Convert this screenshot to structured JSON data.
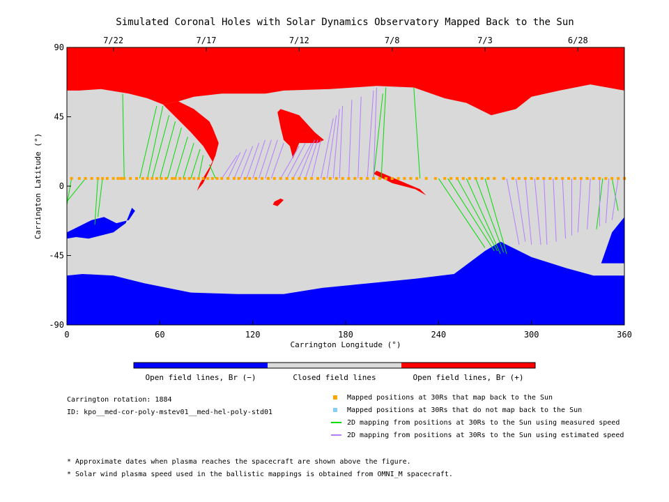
{
  "chart_data": {
    "type": "map",
    "title": "Simulated Coronal Holes with Solar Dynamics Observatory Mapped Back to the Sun",
    "xlabel": "Carrington Longitude (°)",
    "ylabel": "Carrington Latitude (°)",
    "xlim": [
      0,
      360
    ],
    "ylim": [
      -90,
      90
    ],
    "x_ticks": [
      0,
      60,
      120,
      180,
      240,
      300,
      360
    ],
    "y_ticks": [
      90,
      45,
      0,
      -45,
      -90
    ],
    "date_ticks": [
      {
        "label": "7/22",
        "lon": 30
      },
      {
        "label": "7/17",
        "lon": 90
      },
      {
        "label": "7/12",
        "lon": 150
      },
      {
        "label": "7/8",
        "lon": 210
      },
      {
        "label": "7/3",
        "lon": 270
      },
      {
        "label": "6/28",
        "lon": 330
      }
    ],
    "colors": {
      "closed": "#d9d9d9",
      "open_positive": "#ff0000",
      "open_negative": "#0000ff",
      "mapped_point": "#ffa500",
      "unmapped_point": "#87cefa",
      "measured_speed": "#00dd00",
      "estimated_speed": "#b57cff"
    },
    "colorbar": {
      "labels": [
        "Open field lines, Br (−)",
        "Closed field lines",
        "Open field lines, Br (+)"
      ],
      "colors": [
        "#0000ff",
        "#d9d9d9",
        "#ff0000"
      ]
    },
    "legend": [
      {
        "label": "Mapped positions at 30Rs that map back to the Sun",
        "kind": "square",
        "color": "#ffa500"
      },
      {
        "label": "Mapped positions at 30Rs that do not map back to the Sun",
        "kind": "square",
        "color": "#87cefa"
      },
      {
        "label": "2D mapping from positions at 30Rs to the Sun using measured speed",
        "kind": "line",
        "color": "#00dd00"
      },
      {
        "label": "2D mapping from positions at 30Rs to the Sun using estimated speed",
        "kind": "line",
        "color": "#b57cff"
      }
    ],
    "info": {
      "carrington_rotation": "Carrington rotation: 1884",
      "id": "ID: kpo__med-cor-poly-mstev01__med-hel-poly-std01"
    },
    "footnotes": [
      "* Approximate dates when plasma reaches the spacecraft are shown above the figure.",
      "* Solar wind plasma speed used in the ballistic mappings is obtained from OMNI_M spacecraft."
    ],
    "regions": {
      "north_polar_positive": [
        [
          0,
          90
        ],
        [
          360,
          90
        ],
        [
          360,
          62
        ],
        [
          338,
          66
        ],
        [
          318,
          62
        ],
        [
          300,
          58
        ],
        [
          290,
          50
        ],
        [
          274,
          46
        ],
        [
          258,
          54
        ],
        [
          244,
          57
        ],
        [
          224,
          64
        ],
        [
          200,
          65
        ],
        [
          170,
          63
        ],
        [
          140,
          62
        ],
        [
          128,
          60
        ],
        [
          100,
          60
        ],
        [
          82,
          58
        ],
        [
          72,
          55
        ],
        [
          62,
          53
        ],
        [
          52,
          57
        ],
        [
          40,
          60
        ],
        [
          22,
          63
        ],
        [
          8,
          62
        ],
        [
          0,
          62
        ]
      ],
      "north_positive_tongue": [
        [
          72,
          55
        ],
        [
          62,
          53
        ],
        [
          80,
          35
        ],
        [
          88,
          26
        ],
        [
          94,
          16
        ],
        [
          92,
          12
        ],
        [
          86,
          2
        ],
        [
          84,
          -3
        ],
        [
          88,
          2
        ],
        [
          92,
          10
        ],
        [
          96,
          20
        ],
        [
          98,
          28
        ],
        [
          94,
          38
        ],
        [
          92,
          42
        ],
        [
          82,
          50
        ]
      ],
      "north_positive_patch_a": [
        [
          138,
          50
        ],
        [
          150,
          46
        ],
        [
          160,
          35
        ],
        [
          166,
          30
        ],
        [
          162,
          28
        ],
        [
          150,
          28
        ],
        [
          146,
          18
        ],
        [
          144,
          26
        ],
        [
          140,
          30
        ],
        [
          138,
          38
        ],
        [
          136,
          48
        ]
      ],
      "south_polar_negative": [
        [
          0,
          -90
        ],
        [
          360,
          -90
        ],
        [
          360,
          -58
        ],
        [
          340,
          -58
        ],
        [
          322,
          -53
        ],
        [
          300,
          -46
        ],
        [
          280,
          -36
        ],
        [
          270,
          -42
        ],
        [
          250,
          -57
        ],
        [
          225,
          -60
        ],
        [
          205,
          -62
        ],
        [
          185,
          -64
        ],
        [
          165,
          -66
        ],
        [
          140,
          -70
        ],
        [
          110,
          -70
        ],
        [
          80,
          -69
        ],
        [
          50,
          -63
        ],
        [
          30,
          -58
        ],
        [
          10,
          -57
        ],
        [
          0,
          -58
        ]
      ],
      "south_negative_patch_west": [
        [
          0,
          -30
        ],
        [
          8,
          -26
        ],
        [
          16,
          -22
        ],
        [
          24,
          -20
        ],
        [
          32,
          -24
        ],
        [
          40,
          -22
        ],
        [
          44,
          -16
        ],
        [
          42,
          -14
        ],
        [
          38,
          -24
        ],
        [
          30,
          -30
        ],
        [
          22,
          -32
        ],
        [
          14,
          -34
        ],
        [
          6,
          -33
        ],
        [
          0,
          -34
        ]
      ],
      "south_negative_patch_east": [
        [
          345,
          -50
        ],
        [
          352,
          -30
        ],
        [
          360,
          -20
        ],
        [
          360,
          -50
        ]
      ],
      "positive_streak_equator": [
        [
          198,
          8
        ],
        [
          210,
          2
        ],
        [
          225,
          -2
        ],
        [
          232,
          -6
        ],
        [
          228,
          -2
        ],
        [
          214,
          4
        ],
        [
          200,
          10
        ]
      ],
      "positive_speck": [
        [
          134,
          -10
        ],
        [
          138,
          -8
        ],
        [
          140,
          -9
        ],
        [
          136,
          -13
        ],
        [
          133,
          -12
        ]
      ]
    },
    "mapped_points_30Rs": {
      "lat": 5,
      "lon": [
        3,
        8,
        12,
        16,
        20,
        23,
        26,
        30,
        33,
        35,
        37,
        41,
        45,
        49,
        52,
        55,
        58,
        61,
        64,
        68,
        70,
        73,
        76,
        79,
        82,
        85,
        88,
        91,
        94,
        97,
        100,
        104,
        108,
        111,
        115,
        118,
        122,
        126,
        130,
        134,
        138,
        142,
        146,
        150,
        154,
        158,
        162,
        166,
        170,
        174,
        178,
        182,
        186,
        190,
        194,
        198,
        202,
        206,
        210,
        214,
        218,
        222,
        226,
        232,
        238,
        244,
        248,
        252,
        256,
        260,
        264,
        268,
        272,
        276,
        282,
        288,
        292,
        296,
        300,
        304,
        308,
        312,
        316,
        320,
        324,
        328,
        332,
        336,
        340,
        344,
        348,
        352,
        356,
        360
      ]
    },
    "mapping_lines_measured": [
      [
        3,
        5,
        0,
        -12
      ],
      [
        12,
        5,
        0,
        -10
      ],
      [
        20,
        5,
        18,
        -25
      ],
      [
        23,
        5,
        20,
        -20
      ],
      [
        37,
        5,
        36,
        60
      ],
      [
        47,
        5,
        58,
        52
      ],
      [
        52,
        5,
        62,
        52
      ],
      [
        55,
        5,
        66,
        46
      ],
      [
        60,
        5,
        70,
        42
      ],
      [
        65,
        5,
        74,
        38
      ],
      [
        70,
        5,
        78,
        32
      ],
      [
        75,
        5,
        82,
        28
      ],
      [
        80,
        5,
        86,
        24
      ],
      [
        85,
        5,
        88,
        20
      ],
      [
        96,
        5,
        92,
        14
      ],
      [
        198,
        5,
        204,
        60
      ],
      [
        203,
        5,
        206,
        64
      ],
      [
        228,
        5,
        224,
        64
      ],
      [
        240,
        5,
        270,
        -40
      ],
      [
        246,
        5,
        276,
        -42
      ],
      [
        252,
        5,
        278,
        -42
      ],
      [
        258,
        5,
        280,
        -44
      ],
      [
        264,
        5,
        282,
        -43
      ],
      [
        270,
        5,
        284,
        -44
      ],
      [
        346,
        5,
        342,
        -28
      ],
      [
        352,
        5,
        356,
        -16
      ],
      [
        360,
        5,
        360,
        -8
      ]
    ],
    "mapping_lines_estimated": [
      [
        100,
        5,
        110,
        20
      ],
      [
        104,
        5,
        112,
        22
      ],
      [
        108,
        5,
        116,
        24
      ],
      [
        112,
        5,
        120,
        26
      ],
      [
        116,
        5,
        124,
        28
      ],
      [
        120,
        5,
        128,
        30
      ],
      [
        124,
        5,
        132,
        30
      ],
      [
        128,
        5,
        136,
        30
      ],
      [
        132,
        5,
        140,
        28
      ],
      [
        138,
        5,
        150,
        26
      ],
      [
        142,
        5,
        154,
        28
      ],
      [
        146,
        5,
        158,
        28
      ],
      [
        150,
        5,
        160,
        30
      ],
      [
        154,
        5,
        162,
        30
      ],
      [
        158,
        5,
        164,
        30
      ],
      [
        164,
        5,
        172,
        44
      ],
      [
        168,
        5,
        174,
        46
      ],
      [
        172,
        5,
        176,
        50
      ],
      [
        176,
        5,
        178,
        52
      ],
      [
        182,
        5,
        184,
        56
      ],
      [
        188,
        5,
        190,
        58
      ],
      [
        194,
        5,
        198,
        62
      ],
      [
        198,
        5,
        200,
        64
      ],
      [
        284,
        5,
        292,
        -38
      ],
      [
        290,
        5,
        296,
        -36
      ],
      [
        296,
        5,
        300,
        -38
      ],
      [
        302,
        5,
        306,
        -38
      ],
      [
        308,
        5,
        310,
        -38
      ],
      [
        314,
        5,
        316,
        -36
      ],
      [
        320,
        5,
        322,
        -34
      ],
      [
        326,
        5,
        326,
        -32
      ],
      [
        332,
        5,
        330,
        -30
      ],
      [
        338,
        5,
        336,
        -28
      ],
      [
        344,
        5,
        344,
        -26
      ],
      [
        350,
        5,
        348,
        -24
      ],
      [
        356,
        5,
        352,
        -22
      ]
    ]
  }
}
